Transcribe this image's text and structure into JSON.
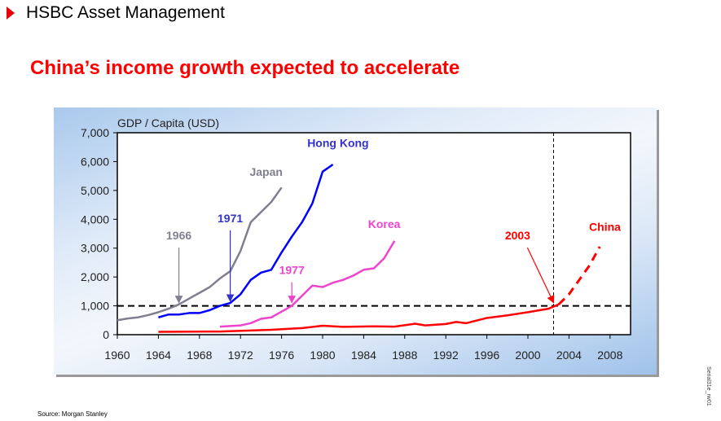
{
  "header": {
    "title": "HSBC Asset Management",
    "brand_color": "#e8000f"
  },
  "slide_title": "China’s income growth expected to accelerate",
  "source": "Source: Morgan Stanley",
  "slide_code": "Serial31e_rw01",
  "chart_data": {
    "type": "line",
    "ylabel": "GDP / Capita (USD)",
    "xlim": [
      1960,
      2009.5
    ],
    "ylim": [
      0,
      7000
    ],
    "xticks": [
      "1960",
      "1964",
      "1968",
      "1972",
      "1976",
      "1980",
      "1984",
      "1988",
      "1992",
      "1996",
      "2000",
      "2004",
      "2008"
    ],
    "yticks": [
      "0",
      "1,000",
      "2,000",
      "3,000",
      "4,000",
      "5,000",
      "6,000",
      "7,000"
    ],
    "reference_line_y": 1000,
    "reference_line_x": 2002.5,
    "series": [
      {
        "name": "Japan",
        "color": "#7f7f8f",
        "x": [
          1960,
          1961,
          1962,
          1963,
          1964,
          1965,
          1966,
          1967,
          1968,
          1969,
          1970,
          1971,
          1972,
          1973,
          1974,
          1975,
          1976
        ],
        "y": [
          500,
          560,
          600,
          680,
          780,
          900,
          1050,
          1250,
          1450,
          1650,
          1950,
          2200,
          2900,
          3900,
          4250,
          4600,
          5100
        ]
      },
      {
        "name": "Hong Kong",
        "color": "#0000ff",
        "x": [
          1964,
          1965,
          1966,
          1967,
          1968,
          1969,
          1970,
          1971,
          1972,
          1973,
          1974,
          1975,
          1976,
          1977,
          1978,
          1979,
          1980,
          1981
        ],
        "y": [
          600,
          700,
          700,
          750,
          750,
          850,
          1000,
          1100,
          1400,
          1900,
          2150,
          2250,
          2850,
          3400,
          3900,
          4550,
          5650,
          5900
        ]
      },
      {
        "name": "Korea",
        "color": "#ee44cc",
        "x": [
          1970,
          1971,
          1972,
          1973,
          1974,
          1975,
          1976,
          1977,
          1978,
          1979,
          1980,
          1981,
          1982,
          1983,
          1984,
          1985,
          1986,
          1987
        ],
        "y": [
          280,
          300,
          320,
          400,
          550,
          600,
          800,
          1000,
          1350,
          1700,
          1650,
          1800,
          1900,
          2050,
          2250,
          2300,
          2650,
          3250
        ]
      },
      {
        "name": "China",
        "color": "#ff0000",
        "x": [
          1964,
          1970,
          1975,
          1978,
          1980,
          1982,
          1985,
          1987,
          1989,
          1990,
          1992,
          1993,
          1994,
          1996,
          1998,
          2000,
          2002,
          2003
        ],
        "y": [
          100,
          110,
          170,
          230,
          310,
          270,
          290,
          280,
          380,
          320,
          370,
          440,
          400,
          580,
          670,
          780,
          900,
          1050
        ]
      },
      {
        "name": "China (projected)",
        "color": "#ff0000",
        "dashed": true,
        "x": [
          2003,
          2004,
          2005,
          2006,
          2007
        ],
        "y": [
          1050,
          1400,
          1900,
          2400,
          3050
        ]
      }
    ],
    "annotations": [
      {
        "text": "Japan",
        "color": "#7f7f8f",
        "x": 1974.5,
        "y": 5500
      },
      {
        "text": "Hong Kong",
        "color": "#3333cc",
        "x": 1981.5,
        "y": 6500
      },
      {
        "text": "Korea",
        "color": "#ee44cc",
        "x": 1986,
        "y": 3700
      },
      {
        "text": "China",
        "color": "#ff0000",
        "x": 2007.5,
        "y": 3600
      },
      {
        "text": "1966",
        "color": "#7f7f8f",
        "arrow_to": [
          1966,
          1000
        ],
        "x": 1966,
        "y": 3300
      },
      {
        "text": "1971",
        "color": "#3333cc",
        "arrow_to": [
          1971,
          1050
        ],
        "x": 1971,
        "y": 3900
      },
      {
        "text": "1977",
        "color": "#ee44cc",
        "arrow_to": [
          1977,
          1000
        ],
        "x": 1977,
        "y": 2100
      },
      {
        "text": "2003",
        "color": "#ff0000",
        "arrow_to": [
          2002.5,
          1000
        ],
        "x": 1999,
        "y": 3300
      }
    ]
  }
}
